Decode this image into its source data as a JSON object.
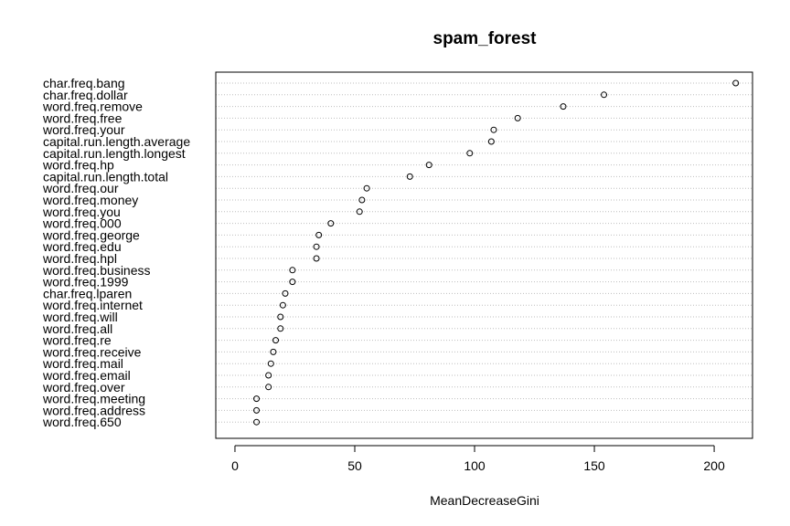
{
  "chart_data": {
    "type": "scatter",
    "title": "spam_forest",
    "xlabel": "MeanDecreaseGini",
    "ylabel": "",
    "xlim": [
      -8,
      216
    ],
    "xticks": [
      0,
      50,
      100,
      150,
      200
    ],
    "grid": "dotted horizontal lines per variable",
    "legend": "none",
    "categories": [
      "char.freq.bang",
      "char.freq.dollar",
      "word.freq.remove",
      "word.freq.free",
      "word.freq.your",
      "capital.run.length.average",
      "capital.run.length.longest",
      "word.freq.hp",
      "capital.run.length.total",
      "word.freq.our",
      "word.freq.money",
      "word.freq.you",
      "word.freq.000",
      "word.freq.george",
      "word.freq.edu",
      "word.freq.hpl",
      "word.freq.business",
      "word.freq.1999",
      "char.freq.lparen",
      "word.freq.internet",
      "word.freq.will",
      "word.freq.all",
      "word.freq.re",
      "word.freq.receive",
      "word.freq.mail",
      "word.freq.email",
      "word.freq.over",
      "word.freq.meeting",
      "word.freq.address",
      "word.freq.650"
    ],
    "values": [
      209,
      154,
      137,
      118,
      108,
      107,
      98,
      81,
      73,
      55,
      53,
      52,
      40,
      35,
      34,
      34,
      24,
      24,
      21,
      20,
      19,
      19,
      17,
      16,
      15,
      14,
      14,
      9,
      9,
      9
    ]
  }
}
